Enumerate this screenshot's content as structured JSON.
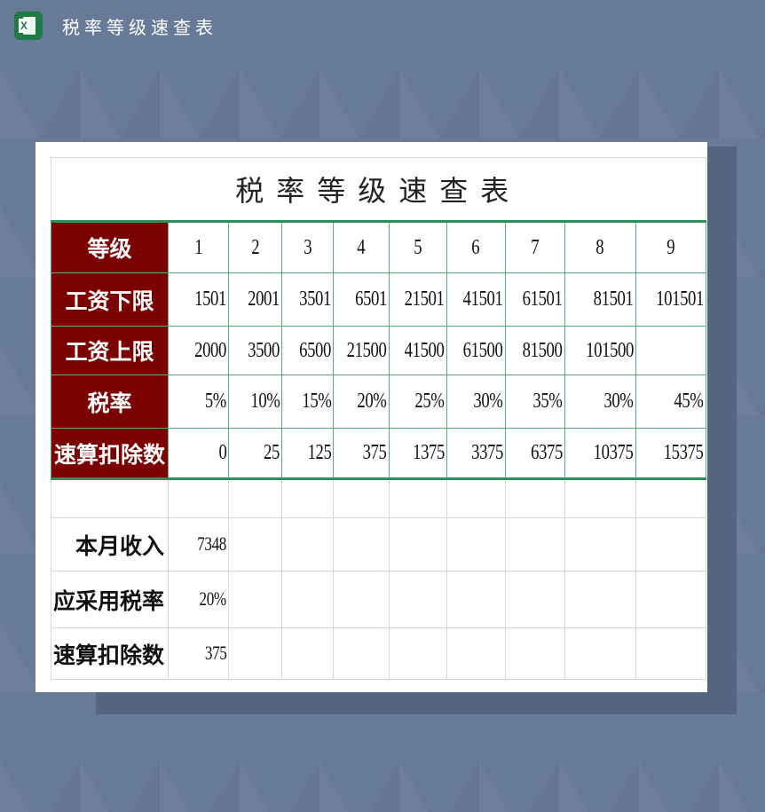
{
  "window": {
    "title": "税率等级速查表",
    "app_icon": "excel-icon"
  },
  "sheet": {
    "title": "税率等级速查表",
    "table": {
      "rows": [
        {
          "label": "等级",
          "values": [
            "1",
            "2",
            "3",
            "4",
            "5",
            "6",
            "7",
            "8",
            "9"
          ]
        },
        {
          "label": "工资下限",
          "values": [
            "1501",
            "2001",
            "3501",
            "6501",
            "21501",
            "41501",
            "61501",
            "81501",
            "101501"
          ]
        },
        {
          "label": "工资上限",
          "values": [
            "2000",
            "3500",
            "6500",
            "21500",
            "41500",
            "61500",
            "81500",
            "101500",
            ""
          ]
        },
        {
          "label": "税率",
          "values": [
            "5%",
            "10%",
            "15%",
            "20%",
            "25%",
            "30%",
            "35%",
            "30%",
            "45%"
          ]
        },
        {
          "label": "速算扣除数",
          "values": [
            "0",
            "25",
            "125",
            "375",
            "1375",
            "3375",
            "6375",
            "10375",
            "15375"
          ]
        }
      ]
    },
    "calc": [
      {
        "label": "本月收入",
        "value": "7348"
      },
      {
        "label": "应采用税率",
        "value": "20%"
      },
      {
        "label": "速算扣除数",
        "value": "375"
      }
    ]
  },
  "colors": {
    "header_bg": "#7b0000",
    "grid_green": "#2f8f5a",
    "background": "#677a98"
  }
}
